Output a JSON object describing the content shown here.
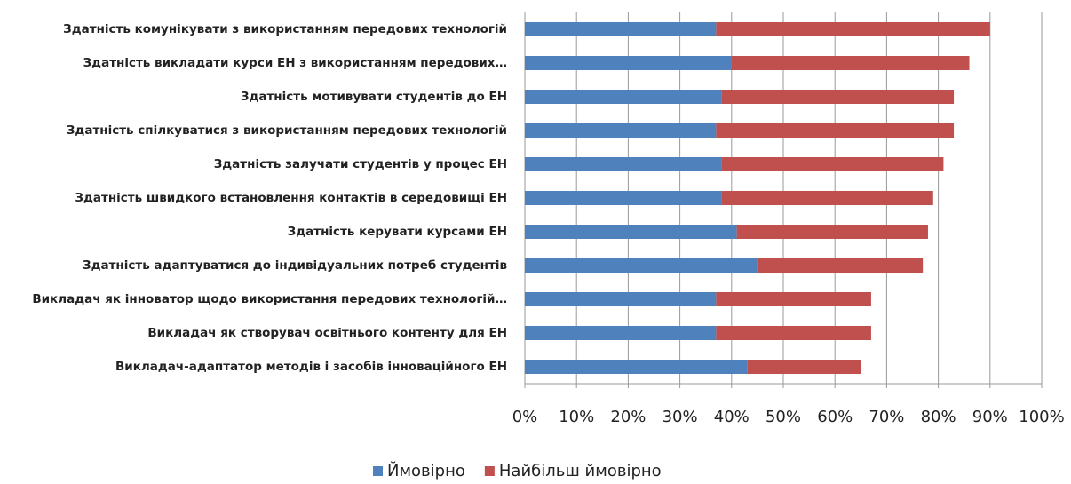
{
  "chart_data": {
    "type": "bar",
    "orientation": "horizontal",
    "stacked": true,
    "categories": [
      "Здатність комунікувати з використанням передових технологій",
      "Здатність викладати курси ЕН з використанням передових…",
      "Здатність мотивувати студентів до ЕН",
      "Здатність спілкуватися з використанням передових технологій",
      "Здатність залучати студентів у процес ЕН",
      "Здатність швидкого встановлення контактів в середовищі ЕН",
      "Здатність керувати курсами ЕН",
      "Здатність адаптуватися до індивідуальних потреб студентів",
      "Викладач як інноватор щодо використання передових технологій…",
      "Викладач як створувач освітнього контенту для ЕН",
      "Викладач-адаптатор методів і засобів інноваційного ЕН"
    ],
    "series": [
      {
        "name": "Ймовірно",
        "color": "#4f81bd",
        "values": [
          37,
          40,
          38,
          37,
          38,
          38,
          41,
          45,
          37,
          37,
          43
        ]
      },
      {
        "name": "Найбільш ймовірно",
        "color": "#c0504d",
        "values": [
          53,
          46,
          45,
          46,
          43,
          41,
          37,
          32,
          30,
          30,
          22
        ]
      }
    ],
    "xlim": [
      0,
      100
    ],
    "xticks": [
      {
        "value": 0,
        "label": "0%"
      },
      {
        "value": 10,
        "label": "10%"
      },
      {
        "value": 20,
        "label": "20%"
      },
      {
        "value": 30,
        "label": "30%"
      },
      {
        "value": 40,
        "label": "40%"
      },
      {
        "value": 50,
        "label": "50%"
      },
      {
        "value": 60,
        "label": "60%"
      },
      {
        "value": 70,
        "label": "70%"
      },
      {
        "value": 80,
        "label": "80%"
      },
      {
        "value": 90,
        "label": "90%"
      },
      {
        "value": 100,
        "label": "100%"
      }
    ],
    "grid": true,
    "legend": "bottom"
  }
}
